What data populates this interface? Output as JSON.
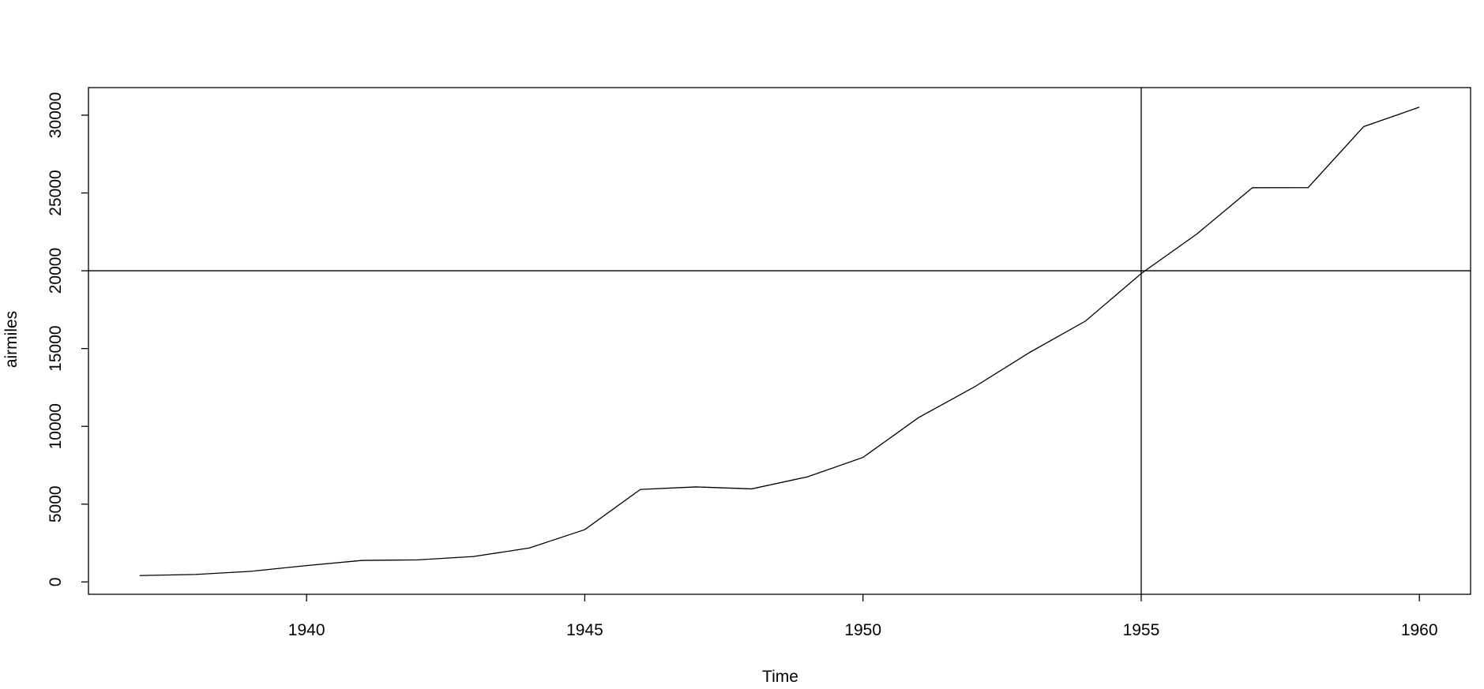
{
  "chart_data": {
    "type": "line",
    "x": [
      1937,
      1938,
      1939,
      1940,
      1941,
      1942,
      1943,
      1944,
      1945,
      1946,
      1947,
      1948,
      1949,
      1950,
      1951,
      1952,
      1953,
      1954,
      1955,
      1956,
      1957,
      1958,
      1959,
      1960
    ],
    "values": [
      412,
      480,
      683,
      1052,
      1385,
      1418,
      1634,
      2178,
      3362,
      5948,
      6109,
      5981,
      6753,
      8003,
      10566,
      12528,
      14760,
      16769,
      19819,
      22362,
      25340,
      25343,
      29269,
      30514
    ],
    "color": "#000000",
    "x_label": "Time",
    "y_label": "airmiles",
    "xlim": [
      1936.08,
      1960.92
    ],
    "xticks": [
      1940,
      1945,
      1950,
      1955,
      1960
    ],
    "ylim": [
      -794,
      31772
    ],
    "yticks": [
      0,
      5000,
      10000,
      15000,
      20000,
      25000,
      30000
    ],
    "hline": 20000,
    "vline": 1955
  }
}
